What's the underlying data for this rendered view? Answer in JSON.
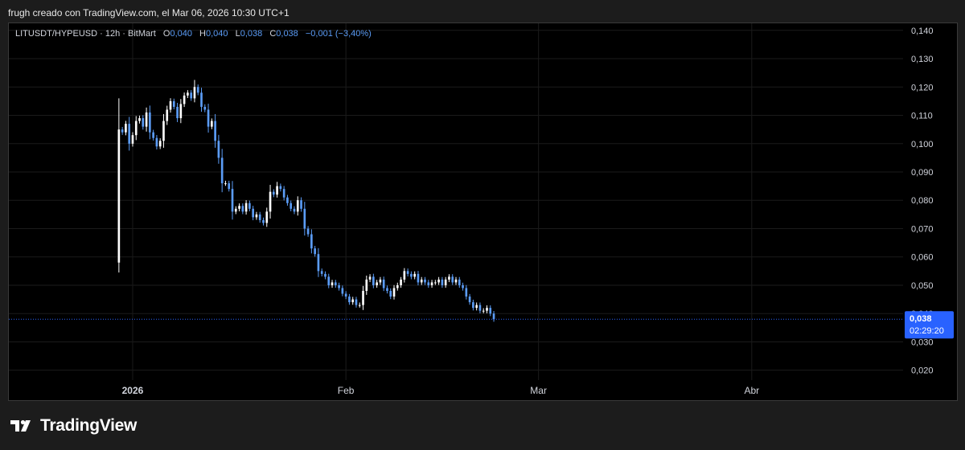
{
  "caption": "frugh creado con TradingView.com, el Mar 06, 2026 10:30 UTC+1",
  "legend": {
    "symbol": "LITUSDT/HYPEUSD · 12h · BitMart",
    "o_label": "O",
    "o_value": "0,040",
    "h_label": "H",
    "h_value": "0,040",
    "l_label": "L",
    "l_value": "0,038",
    "c_label": "C",
    "c_value": "0,038",
    "change": "−0,001 (−3,40%)"
  },
  "brand": {
    "name": "TradingView",
    "logo_icon": "tradingview-logo-icon"
  },
  "colors": {
    "up": "#ffffff",
    "down": "#5b9cf6",
    "background": "#000000",
    "grid": "#1b1b1b",
    "price_tag": "#2962ff"
  },
  "chart_data": {
    "type": "candlestick",
    "price_axis": {
      "ticks": [
        0.02,
        0.03,
        0.04,
        0.05,
        0.06,
        0.07,
        0.08,
        0.09,
        0.1,
        0.11,
        0.12,
        0.13,
        0.14
      ],
      "tick_labels": [
        "0,020",
        "0,030",
        "0,040",
        "0,050",
        "0,060",
        "0,070",
        "0,080",
        "0,090",
        "0,100",
        "0,110",
        "0,120",
        "0,130",
        "0,140"
      ],
      "range": [
        0.0165,
        0.1425
      ]
    },
    "time_axis": {
      "labels": [
        {
          "text": "2026",
          "date": "2026-01-01",
          "bold": true
        },
        {
          "text": "Feb",
          "date": "2026-02-01",
          "bold": false
        },
        {
          "text": "Mar",
          "date": "2026-03-01",
          "bold": false
        },
        {
          "text": "Abr",
          "date": "2026-04-01",
          "bold": false
        }
      ],
      "range": [
        "2025-12-14",
        "2026-04-23"
      ]
    },
    "last_price": {
      "label": "0,038",
      "value": 0.038,
      "countdown": "02:29:20"
    },
    "candles_12h_close_series": {
      "start": "2025-12-30",
      "close": [
        0.105,
        0.104,
        0.107,
        0.1,
        0.103,
        0.108,
        0.109,
        0.106,
        0.111,
        0.104,
        0.102,
        0.099,
        0.101,
        0.108,
        0.112,
        0.115,
        0.113,
        0.109,
        0.114,
        0.117,
        0.118,
        0.116,
        0.12,
        0.118,
        0.113,
        0.112,
        0.106,
        0.108,
        0.101,
        0.095,
        0.086,
        0.086,
        0.084,
        0.076,
        0.077,
        0.078,
        0.076,
        0.079,
        0.077,
        0.074,
        0.075,
        0.073,
        0.072,
        0.076,
        0.083,
        0.082,
        0.085,
        0.084,
        0.081,
        0.079,
        0.077,
        0.076,
        0.08,
        0.077,
        0.07,
        0.068,
        0.063,
        0.061,
        0.055,
        0.054,
        0.053,
        0.05,
        0.051,
        0.05,
        0.049,
        0.047,
        0.046,
        0.044,
        0.045,
        0.043,
        0.043,
        0.048,
        0.052,
        0.053,
        0.05,
        0.051,
        0.052,
        0.049,
        0.048,
        0.046,
        0.049,
        0.05,
        0.052,
        0.055,
        0.054,
        0.053,
        0.054,
        0.051,
        0.052,
        0.051,
        0.05,
        0.051,
        0.051,
        0.052,
        0.05,
        0.052,
        0.053,
        0.051,
        0.052,
        0.05,
        0.049,
        0.046,
        0.044,
        0.042,
        0.043,
        0.041,
        0.041,
        0.042,
        0.04,
        0.038
      ]
    }
  }
}
